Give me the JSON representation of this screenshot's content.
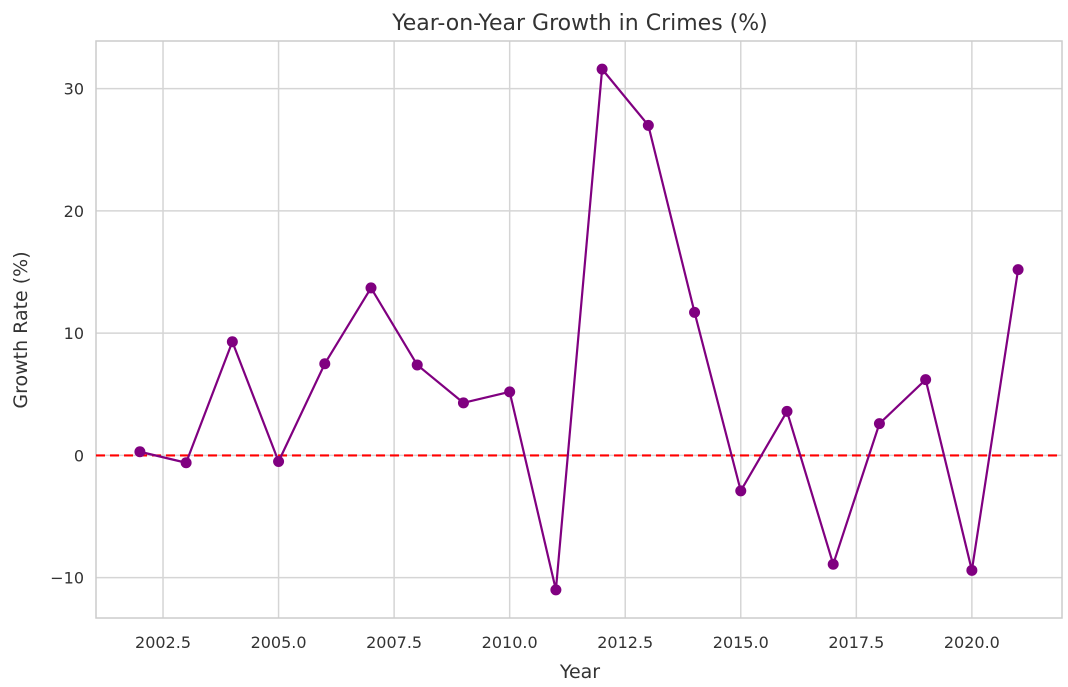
{
  "chart_data": {
    "type": "line",
    "title": "Year-on-Year Growth in Crimes (%)",
    "xlabel": "Year",
    "ylabel": "Growth Rate (%)",
    "xlim": [
      2001.05,
      2021.95
    ],
    "ylim": [
      -13.3,
      33.9
    ],
    "xticks": [
      2002.5,
      2005.0,
      2007.5,
      2010.0,
      2012.5,
      2015.0,
      2017.5,
      2020.0
    ],
    "xtick_labels": [
      "2002.5",
      "2005.0",
      "2007.5",
      "2010.0",
      "2012.5",
      "2015.0",
      "2017.5",
      "2020.0"
    ],
    "yticks": [
      -10,
      0,
      10,
      20,
      30
    ],
    "ytick_labels": [
      "−10",
      "0",
      "10",
      "20",
      "30"
    ],
    "grid": true,
    "series": [
      {
        "color": "#800080",
        "marker": "circle",
        "x": [
          2002,
          2003,
          2004,
          2005,
          2006,
          2007,
          2008,
          2009,
          2010,
          2011,
          2012,
          2013,
          2014,
          2015,
          2016,
          2017,
          2018,
          2019,
          2020,
          2021
        ],
        "values": [
          0.3,
          -0.6,
          9.3,
          -0.5,
          7.5,
          13.7,
          7.4,
          4.3,
          5.2,
          -11.0,
          31.6,
          27.0,
          11.7,
          -2.9,
          3.6,
          -8.9,
          2.6,
          6.2,
          -9.4,
          15.2
        ]
      }
    ],
    "reference_line": {
      "y": 0,
      "color": "#ff0000",
      "style": "dashed"
    }
  }
}
